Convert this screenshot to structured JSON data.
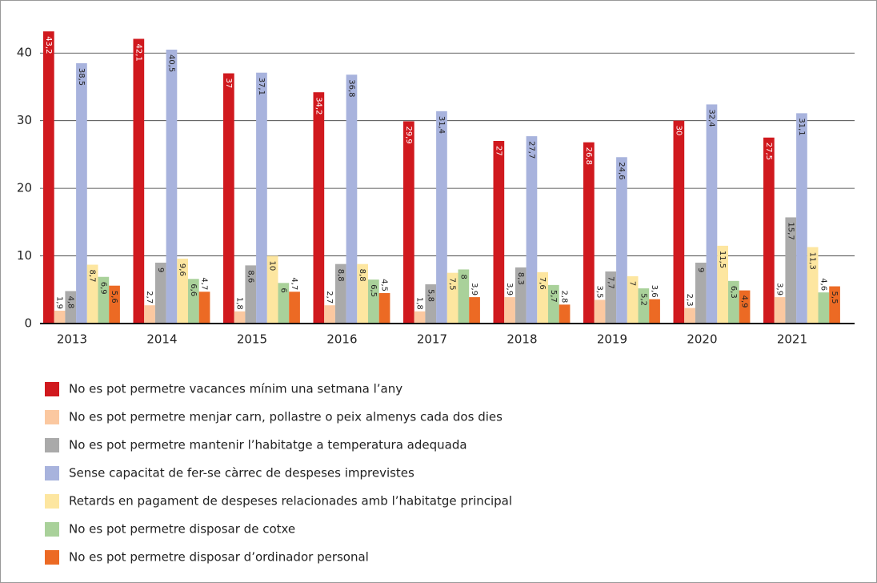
{
  "chart_data": {
    "type": "bar",
    "categories": [
      "2013",
      "2014",
      "2015",
      "2016",
      "2017",
      "2018",
      "2019",
      "2020",
      "2021"
    ],
    "series": [
      {
        "name": "No es pot permetre vacances mínim una setmana l’any",
        "color": "#d0191e",
        "values": [
          43.2,
          42.1,
          37,
          34.2,
          29.9,
          27,
          26.8,
          30,
          27.5
        ],
        "value_labels": [
          "43,2",
          "42,1",
          "37",
          "34,2",
          "29,9",
          "27",
          "26,8",
          "30",
          "27,5"
        ]
      },
      {
        "name": "No es pot permetre menjar carn, pollastre o peix almenys cada dos dies",
        "color": "#fbc8a0",
        "values": [
          1.9,
          2.7,
          1.8,
          2.7,
          1.8,
          3.9,
          3.5,
          2.3,
          3.9
        ],
        "value_labels": [
          "1,9",
          "2,7",
          "1,8",
          "2,7",
          "1,8",
          "3,9",
          "3,5",
          "2,3",
          "3,9"
        ]
      },
      {
        "name": "No es pot permetre mantenir l’habitatge a temperatura adequada",
        "color": "#aaaaaa",
        "values": [
          4.8,
          9,
          8.6,
          8.8,
          5.8,
          8.3,
          7.7,
          9,
          15.7
        ],
        "value_labels": [
          "4,8",
          "9",
          "8,6",
          "8,8",
          "5,8",
          "8,3",
          "7,7",
          "9",
          "15,7"
        ]
      },
      {
        "name": "Sense capacitat de fer-se càrrec de despeses imprevistes",
        "color": "#a8b3dd",
        "values": [
          38.5,
          40.5,
          37.1,
          36.8,
          31.4,
          27.7,
          24.6,
          32.4,
          31.1
        ],
        "value_labels": [
          "38,5",
          "40,5",
          "37,1",
          "36,8",
          "31,4",
          "27,7",
          "24,6",
          "32,4",
          "31,1"
        ]
      },
      {
        "name": "Retards en pagament de despeses relacionades amb l’habitatge principal",
        "color": "#fde6a0",
        "values": [
          8.7,
          9.6,
          10,
          8.8,
          7.5,
          7.6,
          7,
          11.5,
          11.3
        ],
        "value_labels": [
          "8,7",
          "9,6",
          "10",
          "8,8",
          "7,5",
          "7,6",
          "7",
          "11,5",
          "11,3"
        ]
      },
      {
        "name": "No es pot permetre disposar de cotxe",
        "color": "#a9d19a",
        "values": [
          6.9,
          6.6,
          6,
          6.5,
          8,
          5.7,
          5.2,
          6.3,
          4.6
        ],
        "value_labels": [
          "6,9",
          "6,6",
          "6",
          "6,5",
          "8",
          "5,7",
          "5,2",
          "6,3",
          "4,6"
        ]
      },
      {
        "name": "No es pot permetre disposar d’ordinador personal",
        "color": "#ec6a24",
        "values": [
          5.6,
          4.7,
          4.7,
          4.5,
          3.9,
          2.8,
          3.6,
          4.9,
          5.5
        ],
        "value_labels": [
          "5,6",
          "4,7",
          "4,7",
          "4,5",
          "3,9",
          "2,8",
          "3,6",
          "4,9",
          "5,5"
        ]
      }
    ],
    "ylim": [
      0,
      45
    ],
    "yticks": [
      0,
      10,
      20,
      30,
      40
    ],
    "grid": true
  }
}
